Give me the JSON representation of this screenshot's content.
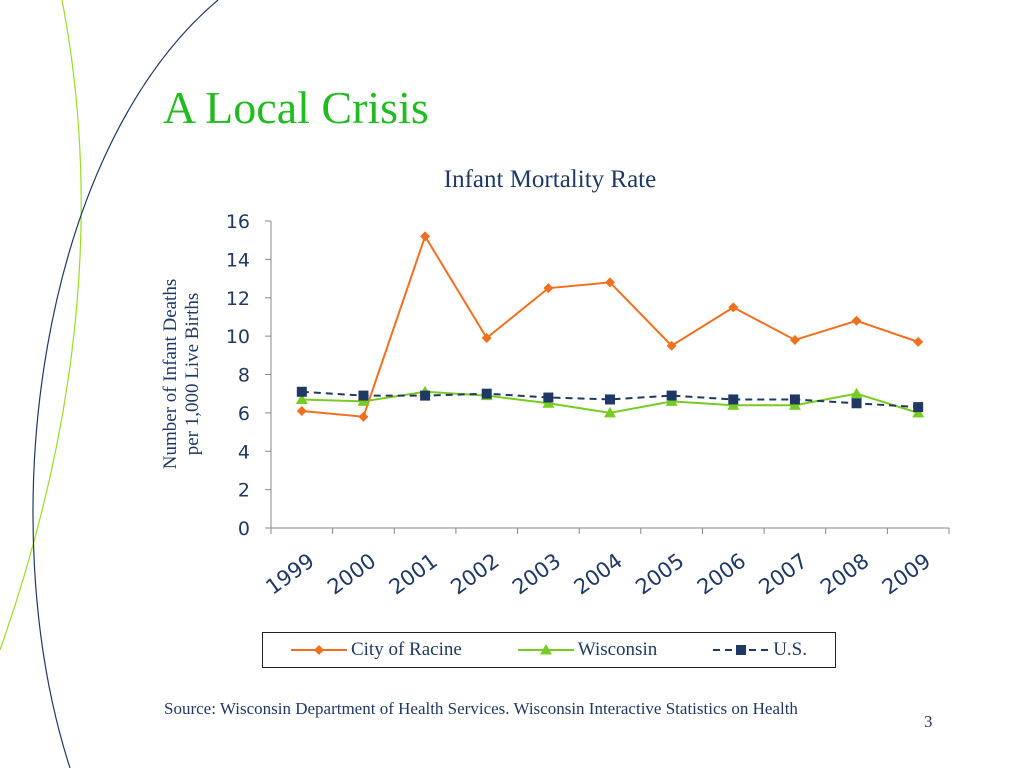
{
  "slide": {
    "title": "A Local Crisis",
    "source": "Source: Wisconsin Department of Health Services. Wisconsin Interactive Statistics on Health",
    "page_number": "3"
  },
  "colors": {
    "title": "#22bb22",
    "text": "#1f3864",
    "racine": "#f07020",
    "wisconsin": "#77cc22",
    "us": "#1f3864",
    "curve_green": "#99dd22",
    "curve_blue": "#1f3864"
  },
  "chart_data": {
    "type": "line",
    "title": "Infant Mortality Rate",
    "ylabel": "Number of Infant Deaths per 1,000 Live Births",
    "xlabel": "",
    "categories": [
      "1999",
      "2000",
      "2001",
      "2002",
      "2003",
      "2004",
      "2005",
      "2006",
      "2007",
      "2008",
      "2009"
    ],
    "ylim": [
      0,
      16
    ],
    "yticks": [
      "0",
      "2",
      "4",
      "6",
      "8",
      "10",
      "12",
      "14",
      "16"
    ],
    "grid": false,
    "legend_position": "bottom",
    "series": [
      {
        "name": "City of Racine",
        "marker": "diamond",
        "line": "solid",
        "values": [
          6.1,
          5.8,
          15.2,
          9.9,
          12.5,
          12.8,
          9.5,
          11.5,
          9.8,
          10.8,
          9.7
        ]
      },
      {
        "name": "Wisconsin",
        "marker": "triangle",
        "line": "solid",
        "values": [
          6.7,
          6.6,
          7.1,
          6.9,
          6.5,
          6.0,
          6.6,
          6.4,
          6.4,
          7.0,
          6.0
        ]
      },
      {
        "name": "U.S.",
        "marker": "square",
        "line": "dashed",
        "values": [
          7.1,
          6.9,
          6.9,
          7.0,
          6.8,
          6.7,
          6.9,
          6.7,
          6.7,
          6.5,
          6.3
        ]
      }
    ]
  }
}
